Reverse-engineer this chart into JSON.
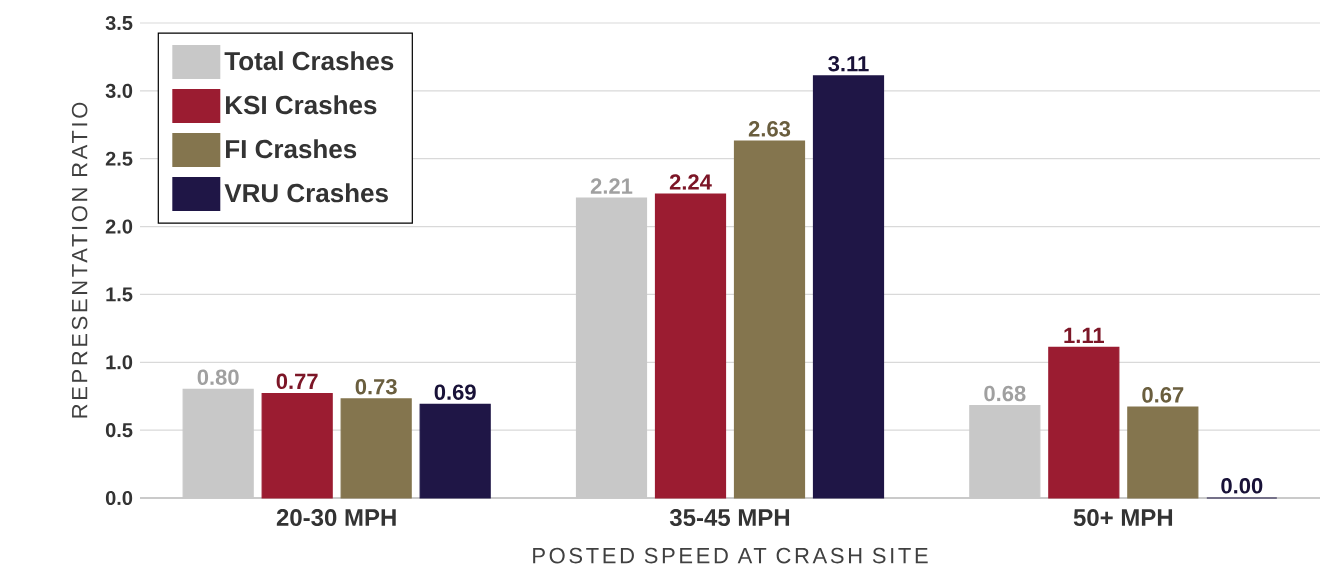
{
  "chart_data": {
    "type": "bar",
    "xlabel": "POSTED SPEED AT CRASH SITE",
    "ylabel": "REPRESENTATION RATIO",
    "categories": [
      "20-30 MPH",
      "35-45 MPH",
      "50+ MPH"
    ],
    "series": [
      {
        "name": "Total Crashes",
        "color": "#c8c8c8",
        "values": [
          0.8,
          2.21,
          0.68
        ],
        "value_labels": [
          "0.80",
          "2.21",
          "0.68"
        ]
      },
      {
        "name": "KSI Crashes",
        "color": "#9b1c31",
        "values": [
          0.77,
          2.24,
          1.11
        ],
        "value_labels": [
          "0.77",
          "2.24",
          "1.11"
        ]
      },
      {
        "name": "FI Crashes",
        "color": "#84754e",
        "values": [
          0.73,
          2.63,
          0.67
        ],
        "value_labels": [
          "0.73",
          "2.63",
          "0.67"
        ]
      },
      {
        "name": "VRU Crashes",
        "color": "#1f1646",
        "values": [
          0.69,
          3.11,
          0.0
        ],
        "value_labels": [
          "0.69",
          "3.11",
          "0.00"
        ]
      }
    ],
    "ylim": [
      0,
      3.5
    ],
    "yticks": [
      "0.0",
      "0.5",
      "1.0",
      "1.5",
      "2.0",
      "2.5",
      "3.0",
      "3.5"
    ],
    "grid": "y",
    "legend": "top left"
  }
}
